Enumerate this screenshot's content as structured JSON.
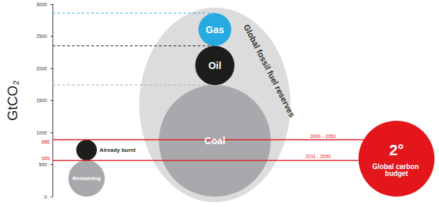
{
  "chart_data": {
    "type": "bubble",
    "y_label": "GtCO₂",
    "ylim": [
      0,
      3000
    ],
    "yticks": [
      0,
      500,
      1000,
      1500,
      2000,
      2500,
      3000
    ],
    "grid": false,
    "tick_labels": "y",
    "stacked": true,
    "series": [
      {
        "name": "Global fossil fuel reserves",
        "color": "#dcdcdc",
        "line_style": "dashed",
        "categories": [
          "Coal",
          "Oil",
          "Gas"
        ],
        "values": [
          1740,
          610,
          510
        ],
        "colors": [
          "#a7a9ac",
          "#1d1d1b",
          "#27aae1"
        ]
      },
      {
        "categories": [
          "Remaining",
          "Already burnt"
        ],
        "values": [
          565,
          321
        ],
        "colors": [
          "#a7a9ac",
          "#1d1d1b"
        ]
      }
    ],
    "budget": {
      "title": "2°",
      "label": "Global carbon budget",
      "color": "#e3161b",
      "lines": [
        {
          "label": "2000 - 2050",
          "value": 886
        },
        {
          "label": "2011 - 2050",
          "value": 565
        }
      ]
    }
  }
}
